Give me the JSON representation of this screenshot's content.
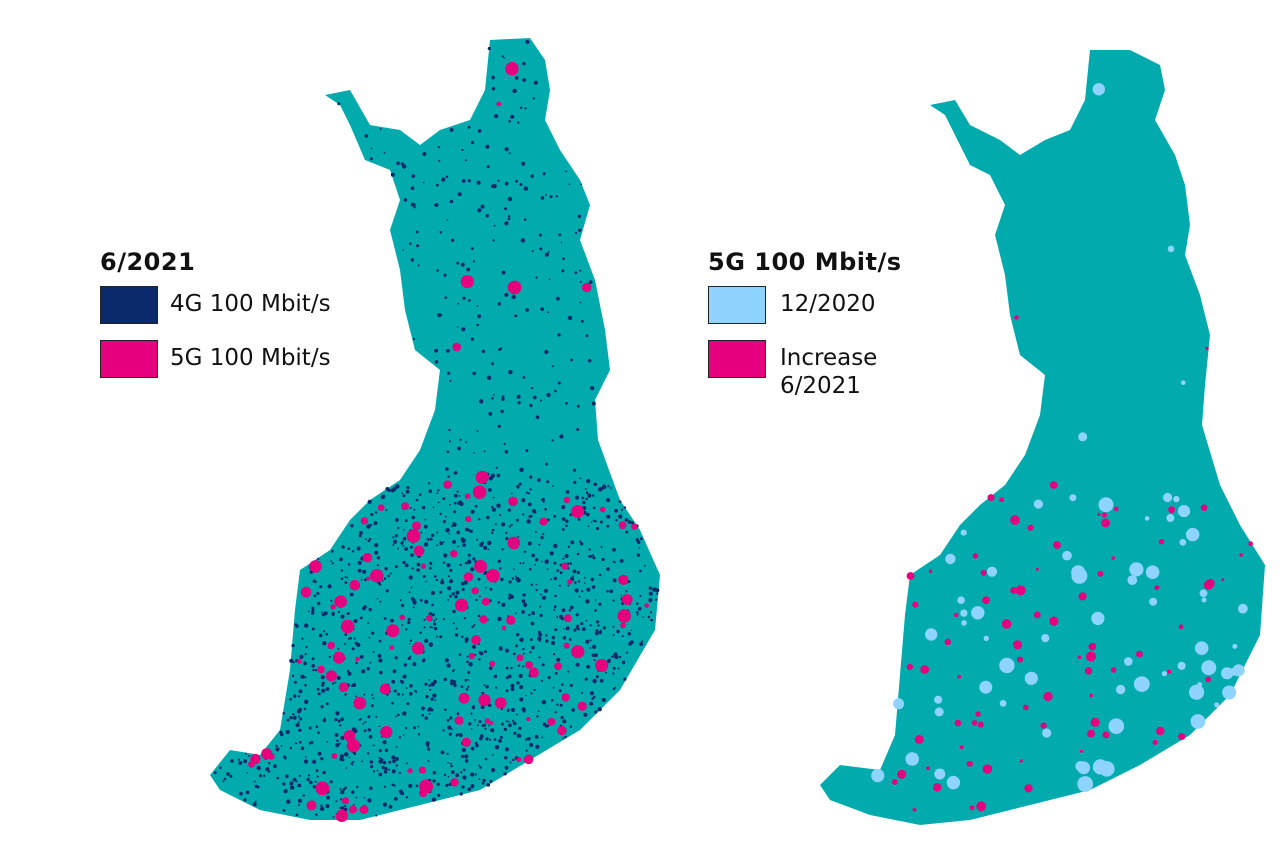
{
  "colors": {
    "land": "#00aaad",
    "g4_100": "#0b2a6b",
    "g5_100": "#e6007e",
    "g5_12_2020": "#8fd3ff",
    "increase": "#e6007e"
  },
  "left_legend": {
    "title": "6/2021",
    "items": [
      {
        "label": "4G 100 Mbit/s",
        "color": "#0b2a6b"
      },
      {
        "label": "5G 100 Mbit/s",
        "color": "#e6007e"
      }
    ]
  },
  "right_legend": {
    "title": "5G 100 Mbit/s",
    "items": [
      {
        "label": "12/2020",
        "color": "#8fd3ff"
      },
      {
        "label": "Increase\n6/2021",
        "color": "#e6007e"
      }
    ]
  }
}
